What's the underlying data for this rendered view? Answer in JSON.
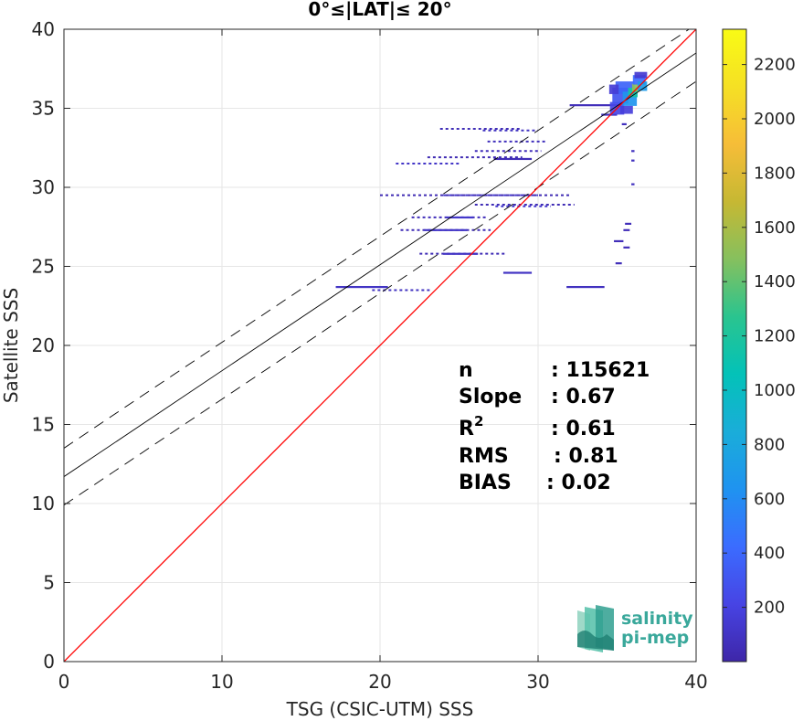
{
  "chart_data": {
    "type": "scatter",
    "title": "0°≤|LAT|≤ 20°",
    "xlabel": "TSG (CSIC-UTM) SSS",
    "ylabel": "Satellite SSS",
    "xlim": [
      0,
      40
    ],
    "ylim": [
      0,
      40
    ],
    "xticks": [
      "0",
      "10",
      "20",
      "30",
      "40"
    ],
    "yticks": [
      "0",
      "5",
      "10",
      "15",
      "20",
      "25",
      "30",
      "35",
      "40"
    ],
    "grid": true,
    "one_to_one_color": "#ff0000",
    "fit_line": {
      "slope": 0.67,
      "intercept": 11.7,
      "band_offset": 1.8,
      "color": "#000000"
    },
    "colorbar": {
      "min": 0,
      "max": 2330,
      "ticks": [
        "200",
        "400",
        "600",
        "800",
        "1000",
        "1200",
        "1400",
        "1600",
        "1800",
        "2000",
        "2200"
      ],
      "tick_values": [
        200,
        400,
        600,
        800,
        1000,
        1200,
        1400,
        1600,
        1800,
        2000,
        2200
      ],
      "colormap": [
        "#3e26a8",
        "#4744e4",
        "#3b6cff",
        "#1f93f0",
        "#1aadd9",
        "#03c2b8",
        "#2ac48f",
        "#86c05e",
        "#c6b833",
        "#f6bd38",
        "#f5e024",
        "#f9fb15"
      ]
    },
    "density_segments": [
      {
        "x0": 32.0,
        "x1": 35.2,
        "y": 35.2,
        "value": 60
      },
      {
        "x0": 34.0,
        "x1": 35.0,
        "y": 34.6,
        "value": 80
      },
      {
        "x0": 23.8,
        "x1": 29.0,
        "y": 33.7,
        "value": 50
      },
      {
        "x0": 26.5,
        "x1": 30.0,
        "y": 33.6,
        "value": 90
      },
      {
        "x0": 26.8,
        "x1": 30.5,
        "y": 32.9,
        "value": 70
      },
      {
        "x0": 26.0,
        "x1": 30.2,
        "y": 32.3,
        "value": 60
      },
      {
        "x0": 27.2,
        "x1": 29.6,
        "y": 31.8,
        "value": 50
      },
      {
        "x0": 23.0,
        "x1": 29.0,
        "y": 31.9,
        "value": 40
      },
      {
        "x0": 21.0,
        "x1": 25.0,
        "y": 31.5,
        "value": 110
      },
      {
        "x0": 20.0,
        "x1": 32.0,
        "y": 29.5,
        "value": 40
      },
      {
        "x0": 24.0,
        "x1": 30.0,
        "y": 29.5,
        "value": 120
      },
      {
        "x0": 26.0,
        "x1": 32.3,
        "y": 28.9,
        "value": 50
      },
      {
        "x0": 27.3,
        "x1": 30.8,
        "y": 28.8,
        "value": 130
      },
      {
        "x0": 22.0,
        "x1": 26.8,
        "y": 28.1,
        "value": 60
      },
      {
        "x0": 24.2,
        "x1": 25.9,
        "y": 28.1,
        "value": 120
      },
      {
        "x0": 21.3,
        "x1": 27.0,
        "y": 27.3,
        "value": 50
      },
      {
        "x0": 22.8,
        "x1": 25.5,
        "y": 27.3,
        "value": 110
      },
      {
        "x0": 22.5,
        "x1": 28.0,
        "y": 25.8,
        "value": 50
      },
      {
        "x0": 24.0,
        "x1": 26.2,
        "y": 25.8,
        "value": 100
      },
      {
        "x0": 27.8,
        "x1": 29.6,
        "y": 24.6,
        "value": 100
      },
      {
        "x0": 17.2,
        "x1": 20.5,
        "y": 23.7,
        "value": 100
      },
      {
        "x0": 19.5,
        "x1": 23.2,
        "y": 23.5,
        "value": 90
      },
      {
        "x0": 31.8,
        "x1": 34.2,
        "y": 23.7,
        "value": 80
      },
      {
        "x0": 35.5,
        "x1": 35.9,
        "y": 27.7,
        "value": 60
      },
      {
        "x0": 35.4,
        "x1": 35.8,
        "y": 27.3,
        "value": 60
      },
      {
        "x0": 34.8,
        "x1": 35.4,
        "y": 26.6,
        "value": 60
      },
      {
        "x0": 35.4,
        "x1": 35.8,
        "y": 26.2,
        "value": 60
      },
      {
        "x0": 34.9,
        "x1": 35.3,
        "y": 25.2,
        "value": 60
      },
      {
        "x0": 35.3,
        "x1": 35.6,
        "y": 34.0,
        "value": 80
      },
      {
        "x0": 35.9,
        "x1": 36.1,
        "y": 32.3,
        "value": 80
      },
      {
        "x0": 35.9,
        "x1": 36.1,
        "y": 31.7,
        "value": 80
      },
      {
        "x0": 35.9,
        "x1": 36.1,
        "y": 30.2,
        "value": 80
      }
    ],
    "density_cluster": [
      {
        "x": 35.0,
        "y": 35.0,
        "w": 0.9,
        "h": 0.8,
        "value": 220
      },
      {
        "x": 35.2,
        "y": 35.8,
        "w": 1.0,
        "h": 1.0,
        "value": 300
      },
      {
        "x": 35.5,
        "y": 36.3,
        "w": 1.2,
        "h": 0.8,
        "value": 380
      },
      {
        "x": 35.8,
        "y": 35.6,
        "w": 0.9,
        "h": 0.9,
        "value": 650
      },
      {
        "x": 36.0,
        "y": 36.0,
        "w": 0.6,
        "h": 0.6,
        "value": 1150
      },
      {
        "x": 36.2,
        "y": 36.3,
        "w": 0.5,
        "h": 0.5,
        "value": 1500
      },
      {
        "x": 36.4,
        "y": 36.8,
        "w": 0.8,
        "h": 0.6,
        "value": 420
      },
      {
        "x": 36.6,
        "y": 36.4,
        "w": 0.6,
        "h": 0.6,
        "value": 700
      },
      {
        "x": 34.8,
        "y": 36.2,
        "w": 0.6,
        "h": 0.6,
        "value": 160
      },
      {
        "x": 35.6,
        "y": 34.9,
        "w": 0.8,
        "h": 0.5,
        "value": 180
      },
      {
        "x": 36.5,
        "y": 37.1,
        "w": 0.8,
        "h": 0.4,
        "value": 140
      }
    ]
  },
  "stats": {
    "rows": [
      {
        "label": "n",
        "value": ": 115621"
      },
      {
        "label": "Slope",
        "value": ": 0.67"
      },
      {
        "label": "R",
        "sup": "2",
        "value": ": 0.61"
      },
      {
        "label": "RMS",
        "value": ": 0.81"
      },
      {
        "label": "BIAS",
        "value": ": 0.02"
      }
    ]
  },
  "logo": {
    "line1": "salinity",
    "line2": "pi-mep"
  }
}
